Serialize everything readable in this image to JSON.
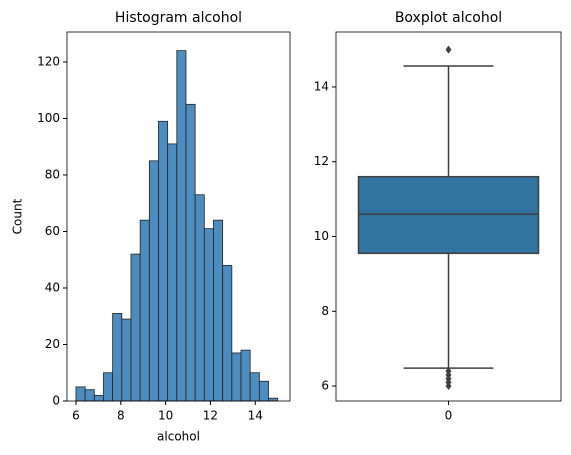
{
  "chart_data": [
    {
      "type": "histogram",
      "title": "Histogram alcohol",
      "x_label": "alcohol",
      "y_label": "Count",
      "color": "#4c8cbf",
      "bins": [
        6,
        6.409,
        6.818,
        7.227,
        7.636,
        8.045,
        8.455,
        8.864,
        9.273,
        9.682,
        10.091,
        10.5,
        10.909,
        11.318,
        11.727,
        12.136,
        12.545,
        12.955,
        13.364,
        13.773,
        14.182,
        14.591,
        15
      ],
      "values": [
        5,
        4,
        2,
        10,
        31,
        29,
        52,
        64,
        85,
        99,
        91,
        124,
        105,
        73,
        61,
        64,
        48,
        17,
        18,
        10,
        7,
        1
      ],
      "xlim": [
        5.6,
        15.55
      ],
      "xticks": [
        6,
        8,
        10,
        12,
        14
      ],
      "ylim": [
        0,
        130.6
      ],
      "yticks": [
        0,
        20,
        40,
        60,
        80,
        100,
        120
      ]
    },
    {
      "type": "box",
      "title": "Boxplot alcohol",
      "color": "#3274a1",
      "categories": [
        "0"
      ],
      "boxes": [
        {
          "q1": 9.55,
          "median": 10.6,
          "q3": 11.6,
          "whislo": 6.48,
          "whishi": 14.56,
          "fliers": [
            15.0,
            6.4,
            6.3,
            6.2,
            6.1,
            6.0
          ]
        }
      ],
      "ylim": [
        5.6,
        15.47
      ],
      "yticks": [
        6,
        8,
        10,
        12,
        14
      ]
    }
  ]
}
